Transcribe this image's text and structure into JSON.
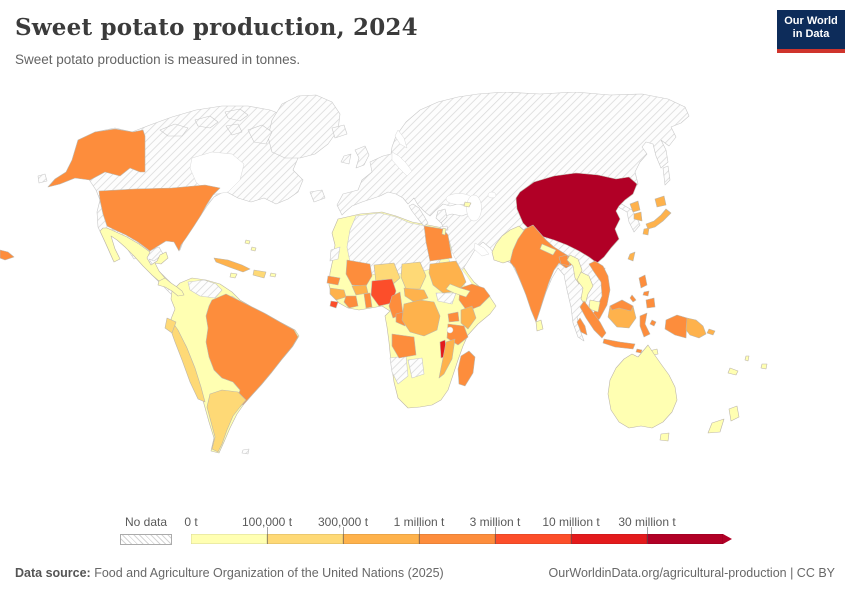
{
  "header": {
    "title": "Sweet potato production, 2024",
    "subtitle": "Sweet potato production is measured in tonnes.",
    "logo_line1": "Our World",
    "logo_line2": "in Data",
    "logo_bg": "#0d2c5a",
    "logo_bar": "#cf342c"
  },
  "legend": {
    "no_data_label": "No data"
  },
  "chart_data": {
    "type": "heatmap",
    "subtype": "choropleth-world-map",
    "title": "Sweet potato production, 2024",
    "unit": "tonnes",
    "legend_bins": [
      {
        "label": "0 t",
        "color": "#ffffb2"
      },
      {
        "label": "100,000 t",
        "color": "#fed976"
      },
      {
        "label": "300,000 t",
        "color": "#feb24c"
      },
      {
        "label": "1 million t",
        "color": "#fd8d3c"
      },
      {
        "label": "3 million t",
        "color": "#fc4e2a"
      },
      {
        "label": "10 million t",
        "color": "#e31a1c"
      },
      {
        "label": "30 million t",
        "color": "#b10026"
      }
    ],
    "no_data": {
      "label": "No data",
      "pattern": "diagonal-hatch"
    },
    "countries": {
      "canada": "no-data",
      "greenland": "no-data",
      "iceland": "no-data",
      "arctic-islands": "no-data",
      "newfoundland": "no-data",
      "united-states": 3,
      "mexico": 0,
      "central-america": 0,
      "cuba": 2,
      "hispaniola": 1,
      "jamaica": 0,
      "puerto-rico": 0,
      "bahamas": 0,
      "south-america-base": 0,
      "venezuela": "no-data",
      "french-guiana": "no-data",
      "brazil": 3,
      "peru": 1,
      "ecuador": 1,
      "argentina": 1,
      "falkland-islands": "no-data",
      "africa-base": 0,
      "western-sahara": "no-data",
      "algeria-libya": "no-data",
      "egypt": 3,
      "sudan": 2,
      "south-sudan": "no-data",
      "ethiopia": 3,
      "mali": 3,
      "niger": 1,
      "chad": 1,
      "senegal": 3,
      "guinea": 2,
      "sierra-leone": 4,
      "ivory-coast": 3,
      "burkina-faso": 2,
      "togo-benin": 3,
      "nigeria": 4,
      "cameroon": 3,
      "central-african-republic": 2,
      "congo": 3,
      "drc": 2,
      "uganda": 3,
      "kenya": 2,
      "tanzania": 3,
      "angola": 3,
      "malawi": 5,
      "mozambique": 2,
      "namibia": "no-data",
      "botswana": "no-data",
      "madagascar": 3,
      "eurasia": "no-data",
      "united-kingdom": "no-data",
      "ireland": "no-data",
      "italy": "no-data",
      "greece": "no-data",
      "sakhalin": "no-data",
      "mongolia": "no-data",
      "china": 6,
      "taiwan": 2,
      "hainan": 3,
      "japan": 2,
      "north-korea": 2,
      "south-korea": 2,
      "india": 3,
      "pakistan": 0,
      "nepal": 0,
      "bangladesh": 3,
      "sri-lanka": 0,
      "myanmar": 0,
      "thailand": 0,
      "vietnam": 3,
      "cambodia": 0,
      "malaysia": 3,
      "indonesia": 3,
      "indonesia-kalimantan": 2,
      "timor-leste": 0,
      "philippines": 3,
      "papua-new-guinea": 2,
      "israel": 0,
      "georgia": 0,
      "yemen": 0,
      "australia": 0,
      "new-zealand": 0,
      "new-caledonia": 0,
      "fiji": 0,
      "vanuatu": 0
    }
  },
  "footer": {
    "source_label": "Data source:",
    "source_text": " Food and Agriculture Organization of the United Nations (2025)",
    "credit": "OurWorldinData.org/agricultural-production | CC BY"
  }
}
